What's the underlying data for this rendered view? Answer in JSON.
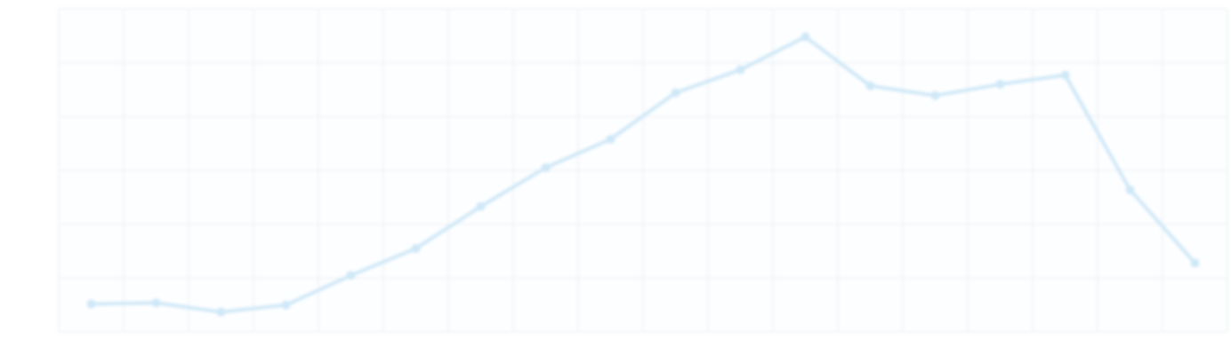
{
  "chart_data": {
    "type": "line",
    "title": "",
    "xlabel": "",
    "ylabel": "",
    "grid": true,
    "legend": "none",
    "x": [
      1,
      2,
      3,
      4,
      5,
      6,
      7,
      8,
      9,
      10,
      11,
      12,
      13,
      14,
      15,
      16,
      17,
      18
    ],
    "series": [
      {
        "values": [
          5.2,
          5.4,
          3.7,
          5.0,
          10.5,
          15.5,
          23.3,
          30.5,
          35.8,
          44.4,
          48.7,
          54.8,
          45.7,
          43.9,
          46.0,
          47.7,
          26.4,
          12.8
        ],
        "color": "#cfe8f7"
      }
    ],
    "xlim": [
      0.5,
      18.5
    ],
    "ylim": [
      0,
      60
    ],
    "colors": {
      "line": "#cfe8f7",
      "grid": "#eef2f5",
      "background": "#ffffff"
    }
  }
}
